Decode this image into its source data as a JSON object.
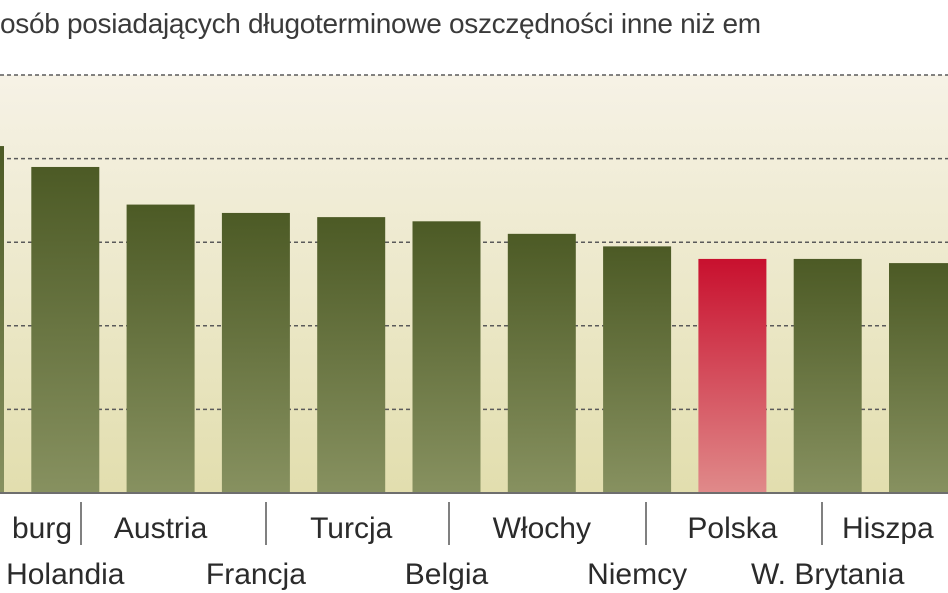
{
  "chart_data": {
    "type": "bar",
    "title": "osób posiadających długoterminowe oszczędności inne niż em",
    "categories": [
      "Luksemburg",
      "Holandia",
      "Austria",
      "Francja",
      "Turcja",
      "Belgia",
      "Włochy",
      "Niemcy",
      "Polska",
      "W. Brytania",
      "Hiszpania"
    ],
    "visible_labels": [
      "burg",
      "Holandia",
      "Austria",
      "Francja",
      "Turcja",
      "Belgia",
      "Włochy",
      "Niemcy",
      "Polska",
      "W. Brytania",
      "Hiszpa"
    ],
    "values": [
      83,
      78,
      69,
      67,
      66,
      65,
      62,
      59,
      56,
      56,
      55
    ],
    "ylim": [
      0,
      100
    ],
    "highlight": "Polska",
    "grid": true,
    "colors": {
      "bar_top": "#4c5a25",
      "bar_bottom": "#879160",
      "highlight_top": "#c8102e",
      "highlight_bottom": "#e08a8a",
      "bg_top": "#f6f2e6",
      "bg_bottom": "#e2deae",
      "grid": "#5a5a5a"
    }
  }
}
